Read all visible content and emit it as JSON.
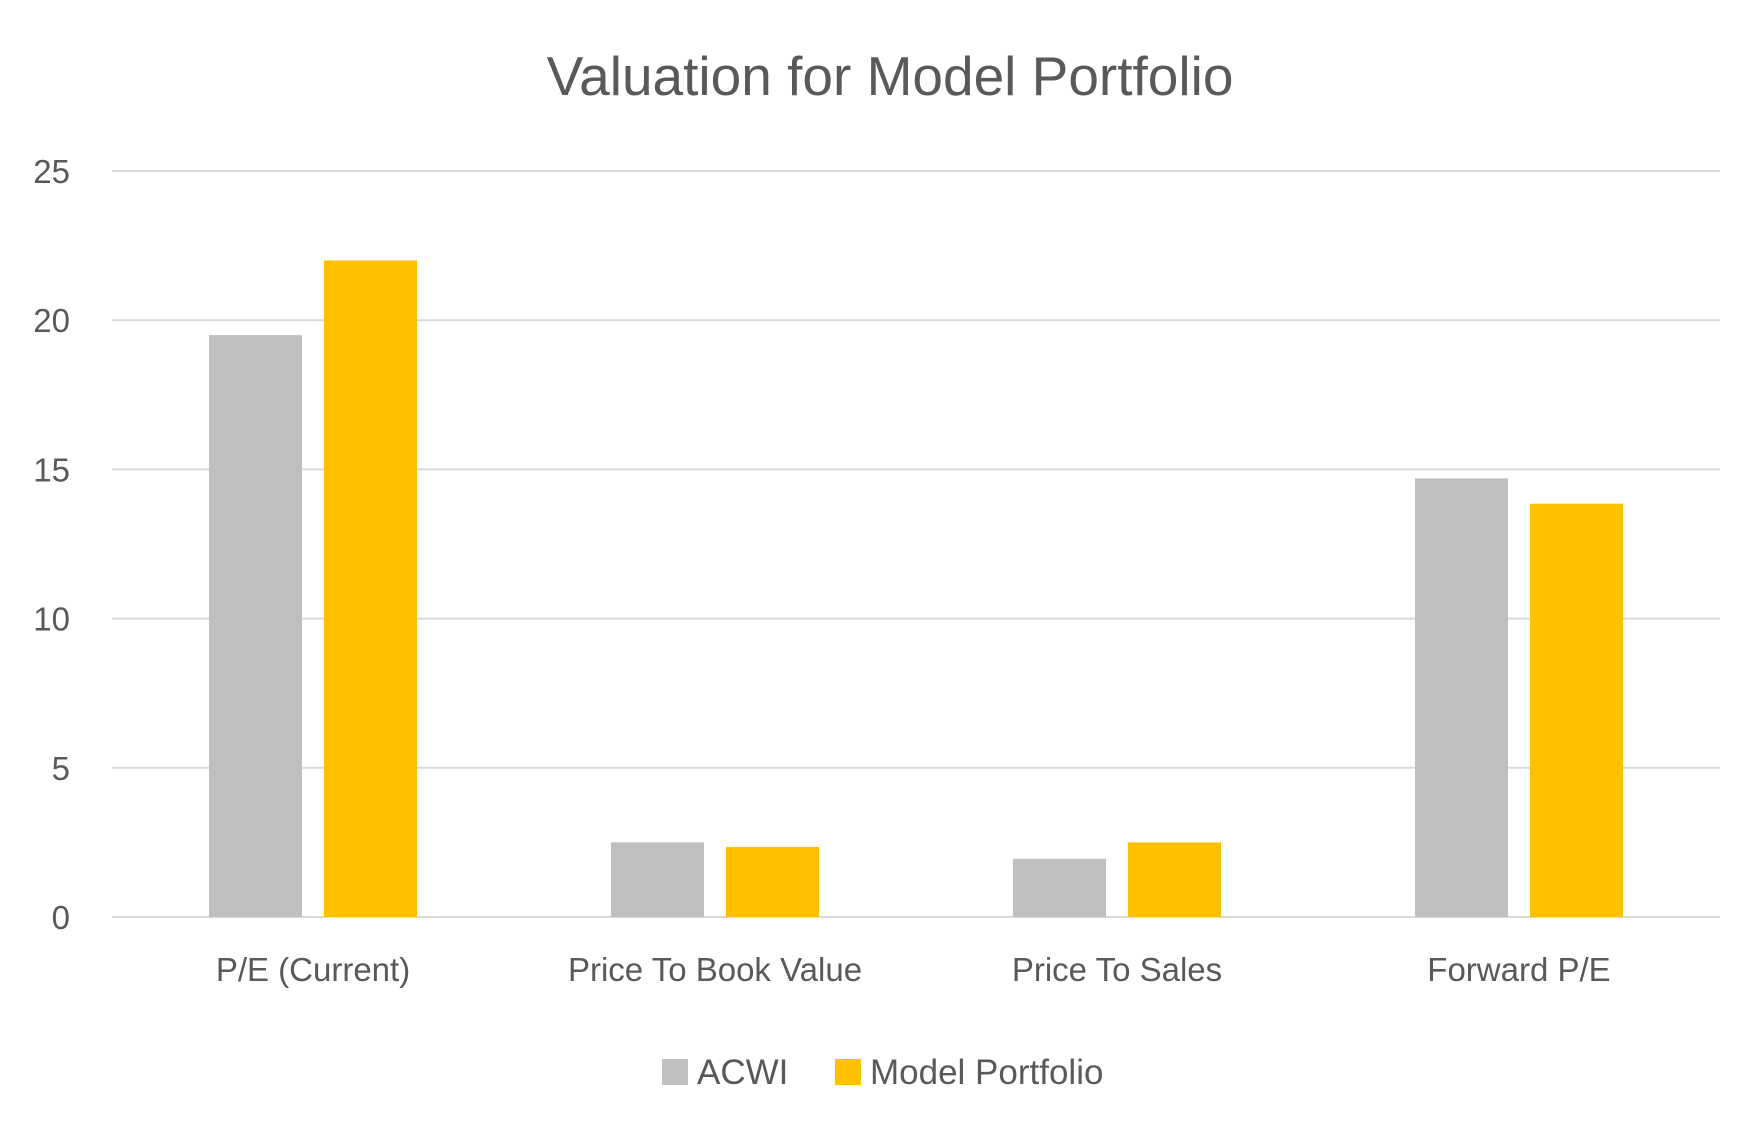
{
  "chart_data": {
    "type": "bar",
    "title": "Valuation for Model Portfolio",
    "xlabel": "",
    "ylabel": "",
    "categories": [
      "P/E (Current)",
      "Price To Book Value",
      "Price To Sales",
      "Forward P/E"
    ],
    "series": [
      {
        "name": "ACWI",
        "color": "#bfbfbf",
        "values": [
          19.5,
          2.5,
          1.95,
          14.7
        ]
      },
      {
        "name": "Model Portfolio",
        "color": "#ffc000",
        "values": [
          22.0,
          2.35,
          2.5,
          13.85
        ]
      }
    ],
    "ylim": [
      0,
      25
    ],
    "yticks": [
      "0",
      "5",
      "10",
      "15",
      "20",
      "25"
    ],
    "grid": true,
    "legend": "bottom"
  }
}
